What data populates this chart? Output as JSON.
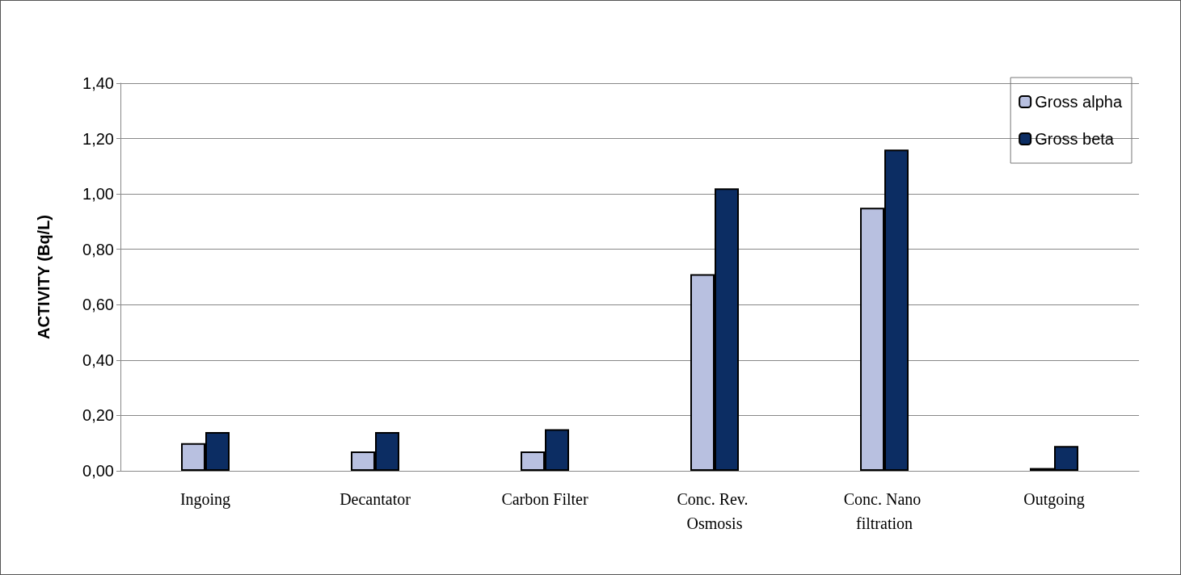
{
  "chart_data": {
    "type": "bar",
    "ylabel": "ACTIVITY (Bq/L)",
    "categories": [
      "Ingoing",
      "Decantator",
      "Carbon Filter",
      "Conc. Rev. Osmosis",
      "Conc. Nano filtration",
      "Outgoing"
    ],
    "series": [
      {
        "name": "Gross alpha",
        "color": "#b8c0e0",
        "values": [
          0.1,
          0.07,
          0.07,
          0.71,
          0.95,
          0.01
        ]
      },
      {
        "name": "Gross beta",
        "color": "#0c2d63",
        "values": [
          0.14,
          0.14,
          0.15,
          1.02,
          1.16,
          0.09
        ]
      }
    ],
    "ylim": [
      0,
      1.4
    ],
    "yticks": [
      {
        "value": 0,
        "label": "0,00"
      },
      {
        "value": 0.2,
        "label": "0,20"
      },
      {
        "value": 0.4,
        "label": "0,40"
      },
      {
        "value": 0.6,
        "label": "0,60"
      },
      {
        "value": 0.8,
        "label": "0,80"
      },
      {
        "value": 1.0,
        "label": "1,00"
      },
      {
        "value": 1.2,
        "label": "1,20"
      },
      {
        "value": 1.4,
        "label": "1,40"
      }
    ],
    "grid": "y",
    "legend": "top right"
  }
}
